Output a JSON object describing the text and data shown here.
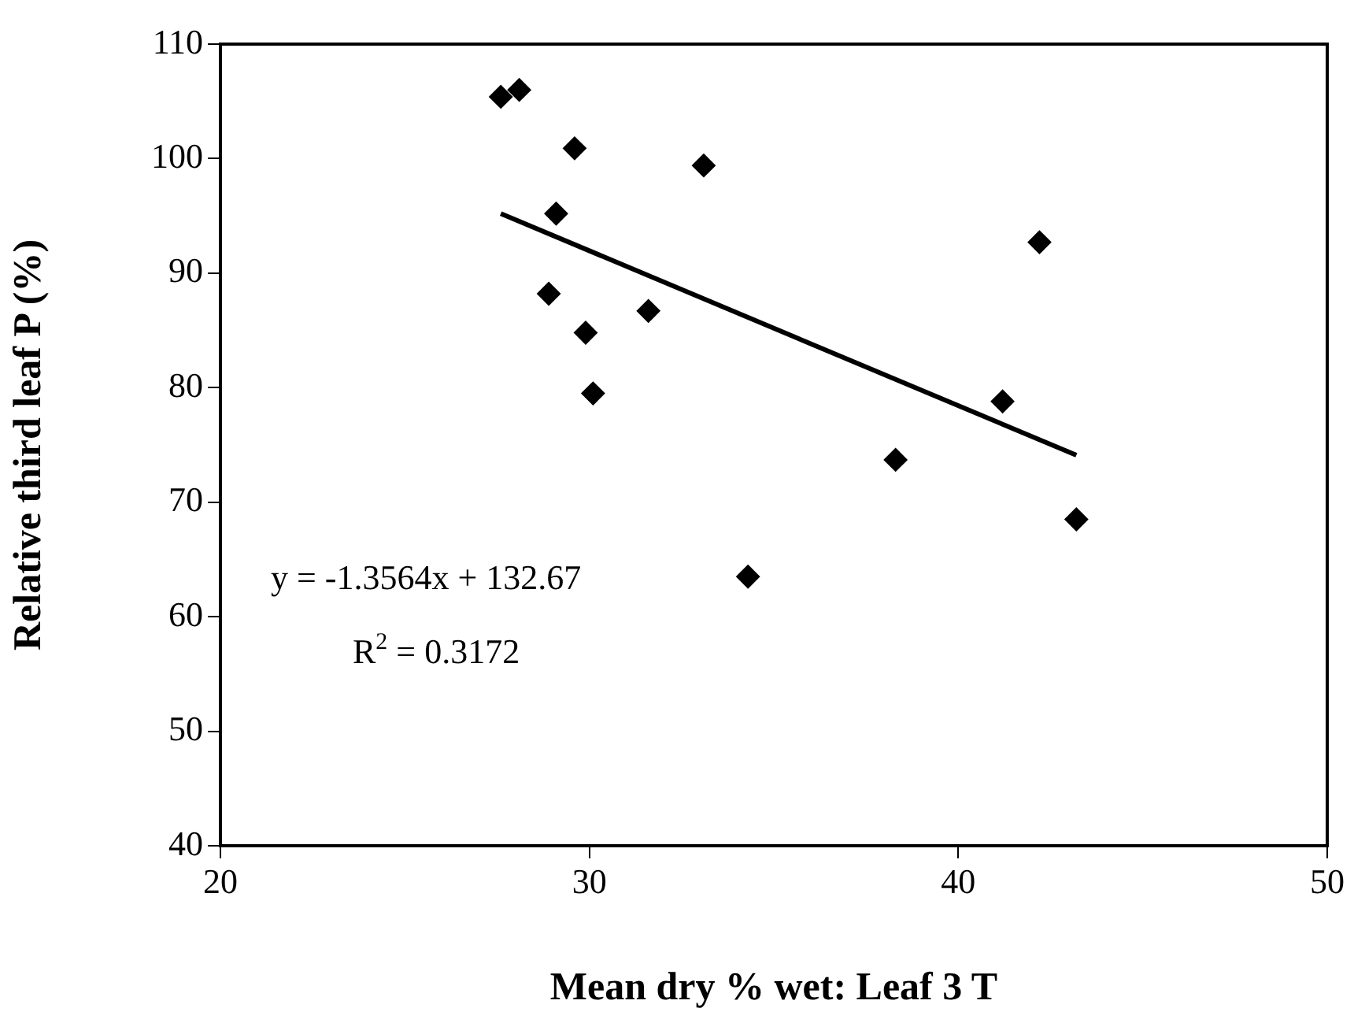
{
  "chart_data": {
    "type": "scatter",
    "xlabel": "Mean dry % wet: Leaf 3 T",
    "ylabel": "Relative third leaf P (%)",
    "xlim": [
      20,
      50
    ],
    "xticks": [
      20,
      30,
      40,
      50
    ],
    "ylim": [
      40,
      110
    ],
    "yticks": [
      40,
      50,
      60,
      70,
      80,
      90,
      100,
      110
    ],
    "grid": false,
    "legend": false,
    "marker": "diamond",
    "series": [
      {
        "color": "#000000",
        "x": [
          27.6,
          28.1,
          29.6,
          33.1,
          29.1,
          28.9,
          31.6,
          29.9,
          30.1,
          42.2,
          41.2,
          38.3,
          43.2,
          34.3
        ],
        "values": [
          105.4,
          106.0,
          100.9,
          99.4,
          95.2,
          88.2,
          86.7,
          84.8,
          79.5,
          92.7,
          78.8,
          73.7,
          68.5,
          63.5
        ]
      },
      {
        "type": "line",
        "color": "#000000",
        "marker": "none",
        "line_style": "solid",
        "x": [
          27.6,
          43.2
        ],
        "values": [
          95.2,
          74.1
        ]
      }
    ],
    "annotations": [
      "y = -1.3564x + 132.67",
      "R$^{2}$ = 0.3172"
    ]
  }
}
